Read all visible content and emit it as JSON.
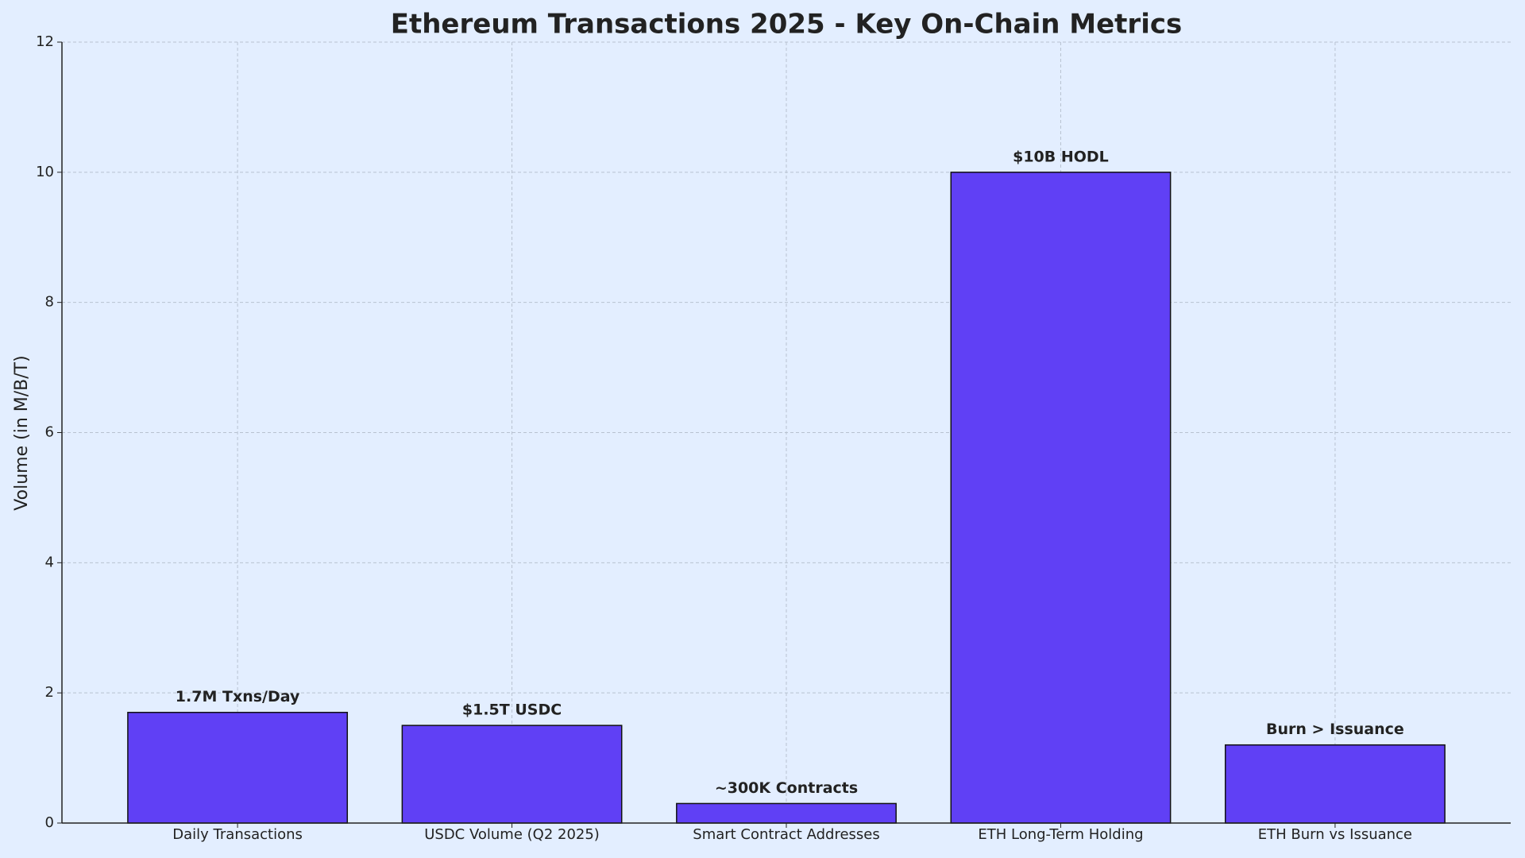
{
  "chart_data": {
    "type": "bar",
    "title": "Ethereum Transactions 2025 - Key On-Chain Metrics",
    "y_label": "Volume (in M/B/T)",
    "categories": [
      "Daily Transactions",
      "USDC Volume (Q2 2025)",
      "Smart Contract Addresses",
      "ETH Long-Term Holding",
      "ETH Burn vs Issuance"
    ],
    "values": [
      1.7,
      1.5,
      0.3,
      10,
      1.2
    ],
    "value_labels": [
      "1.7M Txns/Day",
      "$1.5T USDC",
      "~300K Contracts",
      "$10B HODL",
      "Burn > Issuance"
    ],
    "color": "#6040f5",
    "ylim": [
      0,
      12
    ],
    "yticks": [
      0,
      2,
      4,
      6,
      8,
      10,
      12
    ],
    "grid": true
  }
}
